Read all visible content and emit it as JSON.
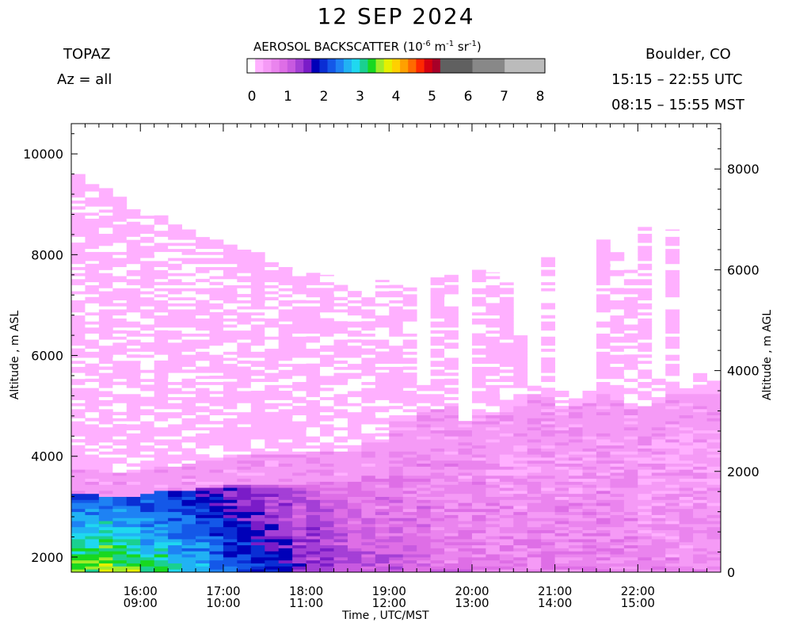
{
  "header": {
    "title": "12 SEP 2024",
    "instrument": "TOPAZ",
    "azimuth": "Az = all",
    "location": "Boulder, CO",
    "utc_range": "15:15 – 22:55 UTC",
    "mst_range": "08:15 – 15:55 MST"
  },
  "colorbar": {
    "title_prefix": "AEROSOL BACKSCATTER (10",
    "exp1": "-6",
    "mid1": " m",
    "exp2": "-1",
    "mid2": " sr",
    "exp3": "-1",
    "suffix": ")",
    "ticks": [
      "0",
      "1",
      "2",
      "3",
      "4",
      "5",
      "6",
      "7",
      "8"
    ],
    "colors": [
      "#ffffff",
      "#ffb0ff",
      "#f59af6",
      "#ea84ee",
      "#de6ee6",
      "#c85ae0",
      "#a43fd6",
      "#7a1cc8",
      "#0000b8",
      "#0a2ed4",
      "#1458e8",
      "#1e82f4",
      "#21b2f4",
      "#1fd8f0",
      "#1ad090",
      "#18d820",
      "#a0ec28",
      "#e6f000",
      "#ffd000",
      "#ffa000",
      "#ff6a00",
      "#ff2800",
      "#d60010",
      "#a80028",
      "#606060",
      "#888888",
      "#bbbbbb"
    ],
    "segments": [
      1,
      1,
      1,
      1,
      1,
      1,
      1,
      1,
      1,
      1,
      1,
      1,
      1,
      1,
      1,
      1,
      1,
      1,
      1,
      1,
      1,
      1,
      1,
      1,
      4,
      4,
      5
    ]
  },
  "axes": {
    "xlabel": "Time , UTC/MST",
    "ylabel_left": "Altitude , m ASL",
    "ylabel_right": "Altitude , m AGL"
  },
  "chart_data": {
    "type": "heatmap",
    "title": "12 SEP 2024",
    "xlabel": "Time , UTC/MST",
    "ylabel": "Altitude , m ASL",
    "ylabel_right": "Altitude , m AGL",
    "x_ticks_utc": [
      "16:00",
      "17:00",
      "18:00",
      "19:00",
      "20:00",
      "21:00",
      "22:00"
    ],
    "x_ticks_mst": [
      "09:00",
      "10:00",
      "11:00",
      "12:00",
      "13:00",
      "14:00",
      "15:00"
    ],
    "x_range_utc": [
      "15:15",
      "22:55"
    ],
    "y_ticks_left": [
      2000,
      4000,
      6000,
      8000,
      10000
    ],
    "y_ticks_right": [
      0,
      2000,
      4000,
      6000,
      8000
    ],
    "ylim": [
      1700,
      10600
    ],
    "surface_altitude_m_asl": 1700,
    "colorbar_range": [
      0,
      8
    ],
    "colorbar_units": "10^-6 m^-1 sr^-1",
    "profile_times_utc": [
      "15:15",
      "15:25",
      "15:35",
      "15:45",
      "15:55",
      "16:05",
      "16:15",
      "16:25",
      "16:35",
      "16:45",
      "16:55",
      "17:05",
      "17:15",
      "17:25",
      "17:35",
      "17:45",
      "17:55",
      "18:05",
      "18:15",
      "18:25",
      "18:35",
      "18:45",
      "18:55",
      "19:05",
      "19:15",
      "19:25",
      "19:35",
      "19:45",
      "19:55",
      "20:05",
      "20:15",
      "20:25",
      "20:35",
      "20:45",
      "20:55",
      "21:05",
      "21:15",
      "21:25",
      "21:35",
      "21:45",
      "21:55",
      "22:05",
      "22:15",
      "22:25",
      "22:35",
      "22:45",
      "22:55"
    ],
    "top_signal_altitude_m": [
      9600,
      9400,
      9350,
      9150,
      8950,
      8850,
      8800,
      8600,
      8500,
      8350,
      8300,
      8200,
      8100,
      8050,
      7850,
      7800,
      7700,
      7650,
      7600,
      7400,
      7300,
      7200,
      7500,
      7400,
      7350,
      5450,
      7550,
      7600,
      4700,
      7700,
      7650,
      7450,
      6400,
      5400,
      7950,
      5300,
      5150,
      5300,
      8300,
      8050,
      7700,
      8550,
      5550,
      8500,
      5350,
      5650,
      5500
    ],
    "aerosol_layer_top_m": [
      3700,
      3700,
      3650,
      3650,
      3650,
      3700,
      3800,
      3800,
      3850,
      3900,
      3900,
      3950,
      4000,
      4000,
      4000,
      4000,
      4000,
      4050,
      4050,
      4100,
      4100,
      4250,
      4250,
      4700,
      4700,
      4900,
      4900,
      4950,
      4950,
      4800,
      4800,
      4900,
      5000,
      5200,
      5200,
      4900,
      5000,
      5100,
      5200,
      5100,
      4900,
      5000,
      5100,
      5200,
      5200,
      5200,
      5200
    ],
    "boundary_layer_values": [
      3.0,
      3.0,
      3.2,
      3.1,
      3.0,
      2.8,
      2.8,
      2.6,
      2.5,
      2.4,
      2.2,
      2.0,
      1.9,
      1.8,
      1.7,
      1.6,
      1.4,
      1.4,
      1.3,
      1.2,
      1.1,
      1.1,
      1.0,
      1.0,
      0.9,
      0.9,
      0.8,
      0.8,
      0.8,
      0.8,
      0.7,
      0.7,
      0.7,
      0.7,
      0.7,
      0.7,
      0.7,
      0.7,
      0.7,
      0.7,
      0.7,
      0.6,
      0.6,
      0.6,
      0.6,
      0.6,
      0.6
    ],
    "free_trop_value": 0.15,
    "grid": false
  }
}
